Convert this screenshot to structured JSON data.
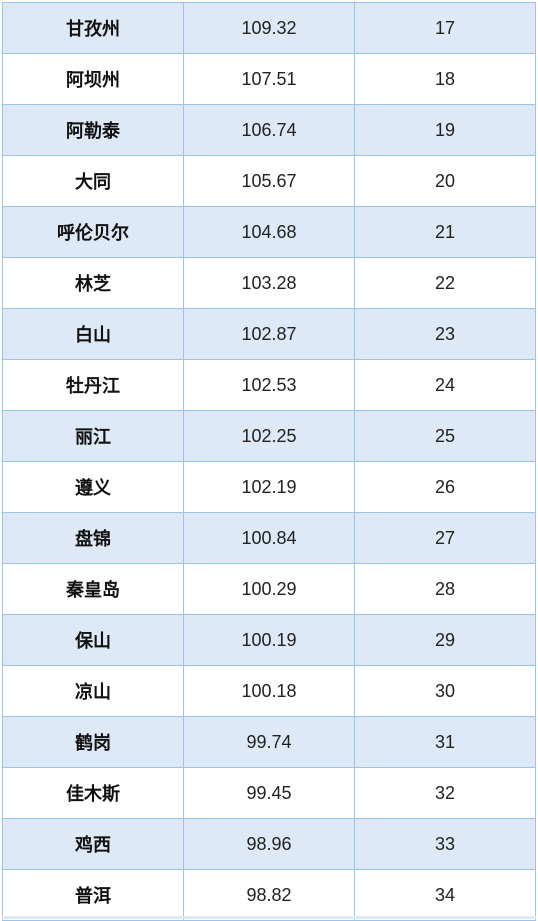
{
  "colors": {
    "grid_line": "#9dc3e6",
    "shaded_row": "#dde9f6",
    "plain_row": "#ffffff",
    "text": "#222222"
  },
  "rows": [
    {
      "city": "甘孜州",
      "score": "109.32",
      "rank": "17"
    },
    {
      "city": "阿坝州",
      "score": "107.51",
      "rank": "18"
    },
    {
      "city": "阿勒泰",
      "score": "106.74",
      "rank": "19"
    },
    {
      "city": "大同",
      "score": "105.67",
      "rank": "20"
    },
    {
      "city": "呼伦贝尔",
      "score": "104.68",
      "rank": "21"
    },
    {
      "city": "林芝",
      "score": "103.28",
      "rank": "22"
    },
    {
      "city": "白山",
      "score": "102.87",
      "rank": "23"
    },
    {
      "city": "牡丹江",
      "score": "102.53",
      "rank": "24"
    },
    {
      "city": "丽江",
      "score": "102.25",
      "rank": "25"
    },
    {
      "city": "遵义",
      "score": "102.19",
      "rank": "26"
    },
    {
      "city": "盘锦",
      "score": "100.84",
      "rank": "27"
    },
    {
      "city": "秦皇岛",
      "score": "100.29",
      "rank": "28"
    },
    {
      "city": "保山",
      "score": "100.19",
      "rank": "29"
    },
    {
      "city": "凉山",
      "score": "100.18",
      "rank": "30"
    },
    {
      "city": "鹤岗",
      "score": "99.74",
      "rank": "31"
    },
    {
      "city": "佳木斯",
      "score": "99.45",
      "rank": "32"
    },
    {
      "city": "鸡西",
      "score": "98.96",
      "rank": "33"
    },
    {
      "city": "普洱",
      "score": "98.82",
      "rank": "34"
    }
  ]
}
